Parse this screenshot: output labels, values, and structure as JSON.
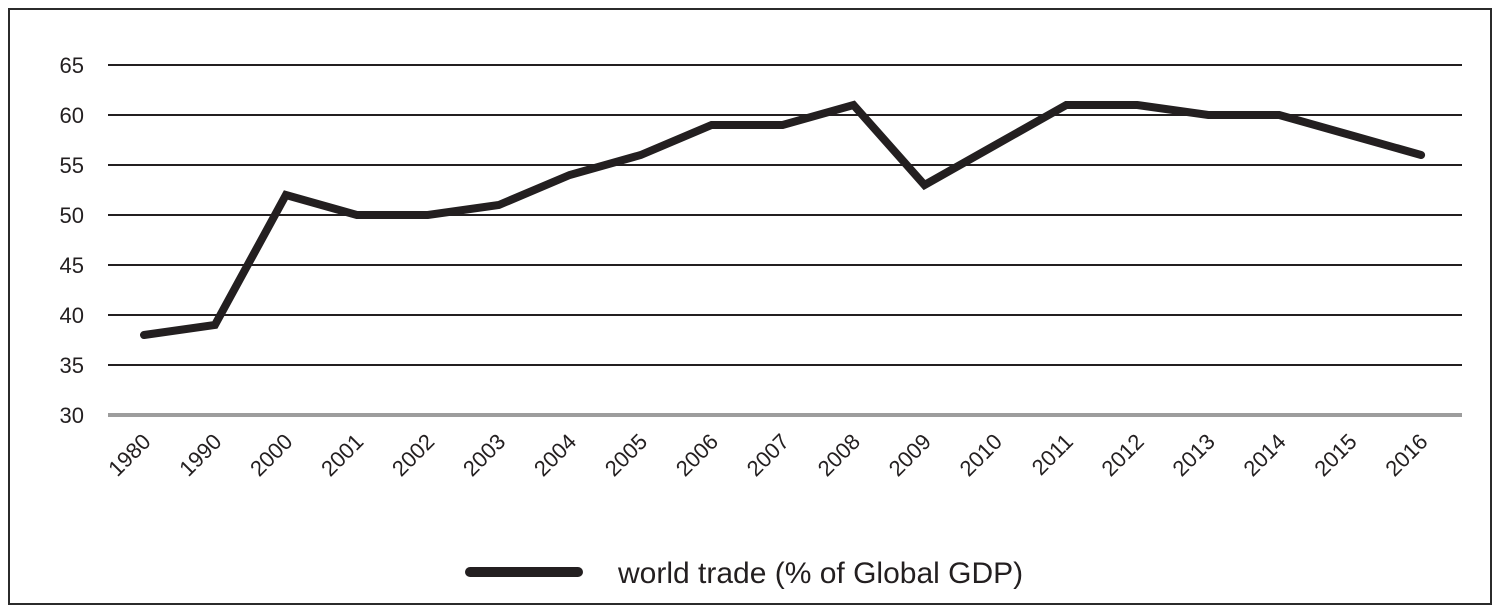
{
  "chart_data": {
    "type": "line",
    "categories": [
      "1980",
      "1990",
      "2000",
      "2001",
      "2002",
      "2003",
      "2004",
      "2005",
      "2006",
      "2007",
      "2008",
      "2009",
      "2010",
      "2011",
      "2012",
      "2013",
      "2014",
      "2015",
      "2016"
    ],
    "series": [
      {
        "name": "world trade (% of Global GDP)",
        "values": [
          38,
          39,
          52,
          50,
          50,
          51,
          54,
          56,
          59,
          59,
          61,
          53,
          57,
          61,
          61,
          60,
          60,
          58,
          56
        ]
      }
    ],
    "yticks": [
      30,
      35,
      40,
      45,
      50,
      55,
      60,
      65
    ],
    "ylim": [
      30,
      65
    ],
    "grid": true,
    "legend_position": "bottom-center",
    "colors": {
      "line": "#231f20",
      "grid": "#231f20",
      "baseline": "#9d9d9d"
    }
  }
}
